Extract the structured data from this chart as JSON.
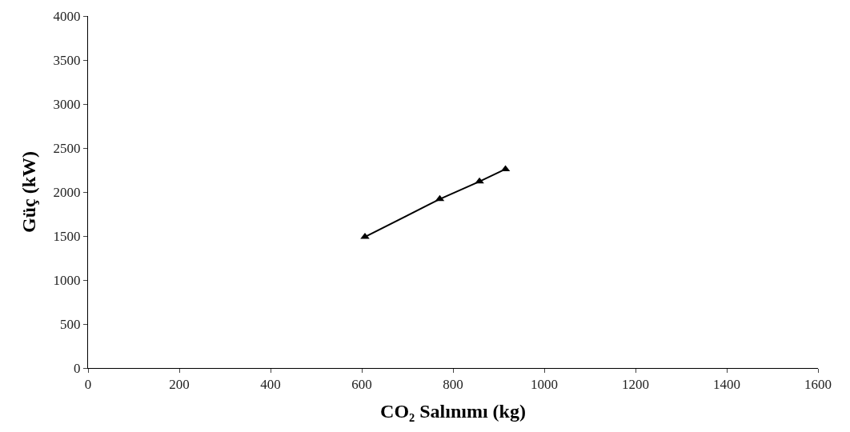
{
  "chart_data": {
    "type": "line",
    "xlabel": "CO₂ Salınımı (kg)",
    "ylabel": "Güç (kW)",
    "x": [
      607,
      771,
      858,
      915
    ],
    "series": [
      {
        "color": "#000000",
        "values": [
          1490,
          1920,
          2120,
          2260
        ]
      }
    ],
    "marker": "triangle",
    "line_style": "solid",
    "xlim": [
      0,
      1600
    ],
    "xticks": [
      0,
      200,
      400,
      600,
      800,
      1000,
      1200,
      1400,
      1600
    ],
    "ylim": [
      0,
      4000
    ],
    "yticks": [
      0,
      500,
      1000,
      1500,
      2000,
      2500,
      3000,
      3500,
      4000
    ],
    "legend": false
  }
}
